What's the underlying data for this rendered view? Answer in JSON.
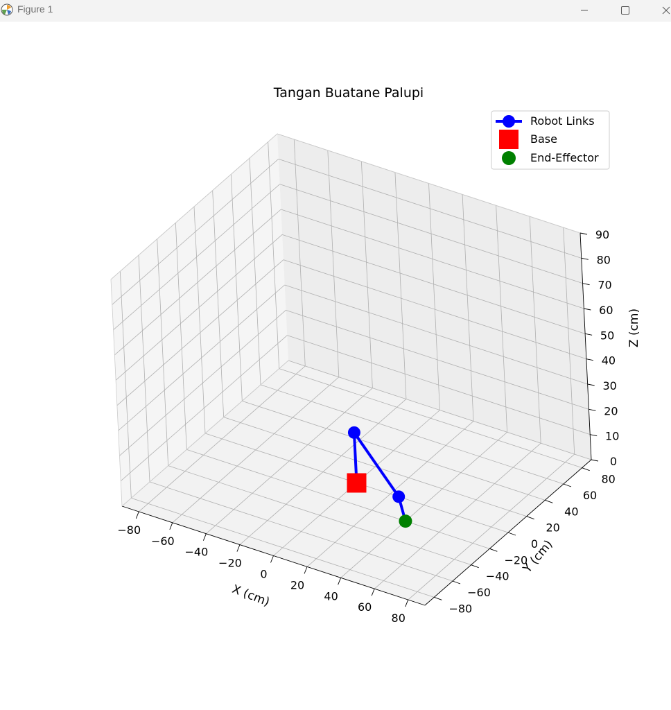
{
  "window": {
    "title": "Figure 1",
    "buttons": {
      "minimize": "minimize-icon",
      "maximize": "maximize-icon",
      "close": "close-icon"
    }
  },
  "chart_data": {
    "type": "scatter",
    "projection": "3d",
    "title": "Tangan Buatane Palupi",
    "xlabel": "X (cm)",
    "ylabel": "Y (cm)",
    "zlabel": "Z (cm)",
    "xlim": [
      -90,
      90
    ],
    "ylim": [
      -90,
      90
    ],
    "zlim": [
      0,
      90
    ],
    "xticks": [
      -80,
      -60,
      -40,
      -20,
      0,
      20,
      40,
      60,
      80
    ],
    "yticks": [
      -80,
      -60,
      -40,
      -20,
      0,
      20,
      40,
      60,
      80
    ],
    "zticks": [
      0,
      10,
      20,
      30,
      40,
      50,
      60,
      70,
      80,
      90
    ],
    "grid": true,
    "legend_position": "top-right",
    "legend": [
      {
        "label": "Robot Links",
        "marker": "line-circle",
        "color": "#0000ff"
      },
      {
        "label": "Base",
        "marker": "square",
        "color": "#ff0000"
      },
      {
        "label": "End-Effector",
        "marker": "circle",
        "color": "#008000"
      }
    ],
    "series": [
      {
        "name": "Robot Links",
        "color": "#0000ff",
        "points": [
          {
            "x": 0,
            "y": 0,
            "z": 0
          },
          {
            "x": 0,
            "y": 0,
            "z": 20
          },
          {
            "x": 25,
            "y": 0,
            "z": 0
          },
          {
            "x": 40,
            "y": -20,
            "z": 0
          }
        ]
      },
      {
        "name": "Base",
        "color": "#ff0000",
        "points": [
          {
            "x": 0,
            "y": 0,
            "z": 0
          }
        ]
      },
      {
        "name": "End-Effector",
        "color": "#008000",
        "points": [
          {
            "x": 40,
            "y": -20,
            "z": 0
          }
        ]
      }
    ]
  }
}
